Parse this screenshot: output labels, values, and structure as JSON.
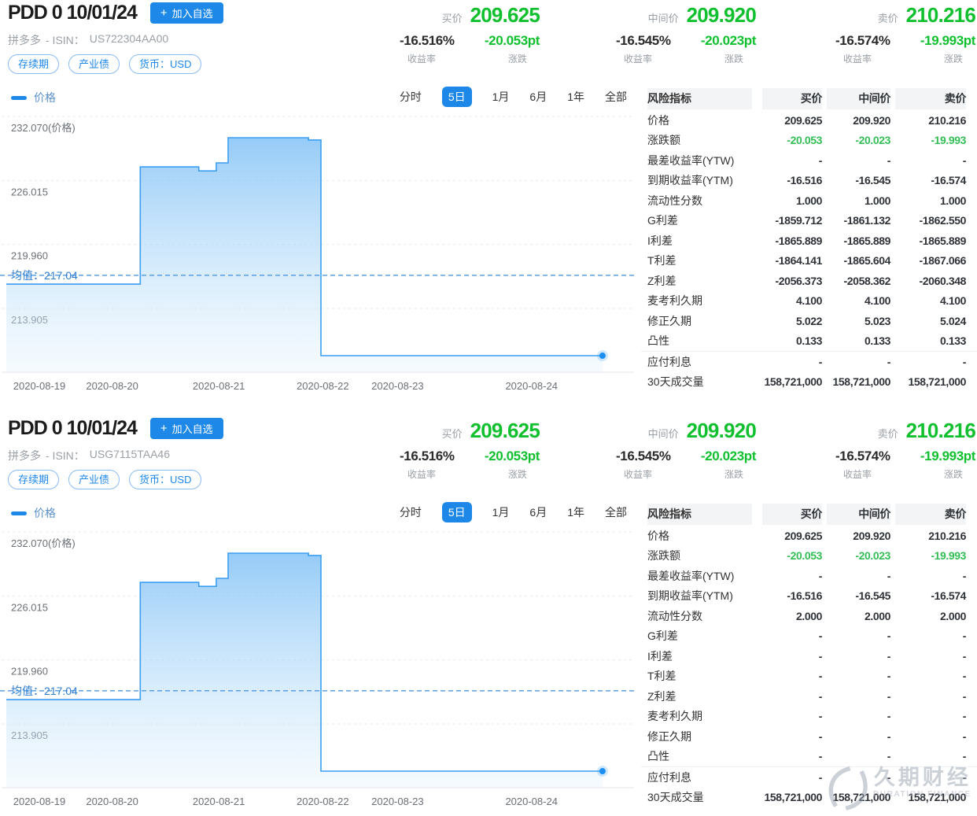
{
  "colors": {
    "accent_blue": "#1e88e9",
    "quote_green": "#10c02e",
    "table_green": "#35bd57",
    "chart_line": "#3b9ef2",
    "mean_line": "#3d8edb"
  },
  "watermark": {
    "cn": "久期财经",
    "en": "DURATION FINANCE"
  },
  "panels": [
    {
      "title": "PDD 0 10/01/24",
      "add_button_plus": "+",
      "add_button_label": "加入自选",
      "name": "拼多多",
      "isin_label": "- ISIN：",
      "isin": "US722304AA00",
      "tags": [
        "存续期",
        "产业债",
        "货币：USD"
      ],
      "quotes": [
        {
          "label": "买价",
          "price": "209.625",
          "yield": "-16.516%",
          "yield_label": "收益率",
          "change": "-20.053pt",
          "change_label": "涨跌"
        },
        {
          "label": "中间价",
          "price": "209.920",
          "yield": "-16.545%",
          "yield_label": "收益率",
          "change": "-20.023pt",
          "change_label": "涨跌"
        },
        {
          "label": "卖价",
          "price": "210.216",
          "yield": "-16.574%",
          "yield_label": "收益率",
          "change": "-19.993pt",
          "change_label": "涨跌"
        }
      ],
      "legend": "价格",
      "tabs": [
        {
          "label": "分时"
        },
        {
          "label": "5日"
        },
        {
          "label": "1月"
        },
        {
          "label": "6月"
        },
        {
          "label": "1年"
        },
        {
          "label": "全部"
        }
      ],
      "active_tab": "5日",
      "chart_data": {
        "type": "area",
        "series_name": "价格",
        "ylim": [
          207.87,
          232.07
        ],
        "y_ticks": [
          {
            "v": 232.07,
            "label": "232.070(价格)"
          },
          {
            "v": 226.015,
            "label": "226.015"
          },
          {
            "v": 219.96,
            "label": "219.960"
          },
          {
            "v": 213.905,
            "label": "213.905"
          }
        ],
        "x_ticks": [
          {
            "pos": 0.053,
            "label": "2020-08-19"
          },
          {
            "pos": 0.17,
            "label": "2020-08-20"
          },
          {
            "pos": 0.341,
            "label": "2020-08-21"
          },
          {
            "pos": 0.508,
            "label": "2020-08-22"
          },
          {
            "pos": 0.628,
            "label": "2020-08-23"
          },
          {
            "pos": 0.843,
            "label": "2020-08-24"
          }
        ],
        "mean": {
          "label": "均值：217.04",
          "value": 217.04
        },
        "points": [
          [
            0.0,
            216.2
          ],
          [
            0.215,
            216.2
          ],
          [
            0.215,
            227.3
          ],
          [
            0.309,
            227.3
          ],
          [
            0.309,
            226.92
          ],
          [
            0.337,
            226.92
          ],
          [
            0.337,
            227.68
          ],
          [
            0.356,
            227.68
          ],
          [
            0.356,
            230.06
          ],
          [
            0.485,
            230.06
          ],
          [
            0.485,
            229.84
          ],
          [
            0.505,
            229.84
          ],
          [
            0.505,
            209.43
          ],
          [
            0.957,
            209.43
          ]
        ]
      },
      "table": {
        "title": "风险指标",
        "columns": [
          "买价",
          "中间价",
          "卖价"
        ],
        "rows": [
          {
            "label": "价格",
            "values": [
              "209.625",
              "209.920",
              "210.216"
            ]
          },
          {
            "label": "涨跌额",
            "values": [
              "-20.053",
              "-20.023",
              "-19.993"
            ],
            "green": true
          },
          {
            "label": "最差收益率(YTW)",
            "values": [
              "-",
              "-",
              "-"
            ]
          },
          {
            "label": "到期收益率(YTM)",
            "values": [
              "-16.516",
              "-16.545",
              "-16.574"
            ]
          },
          {
            "label": "流动性分数",
            "values": [
              "1.000",
              "1.000",
              "1.000"
            ]
          },
          {
            "label": "G利差",
            "values": [
              "-1859.712",
              "-1861.132",
              "-1862.550"
            ]
          },
          {
            "label": "I利差",
            "values": [
              "-1865.889",
              "-1865.889",
              "-1865.889"
            ]
          },
          {
            "label": "T利差",
            "values": [
              "-1864.141",
              "-1865.604",
              "-1867.066"
            ]
          },
          {
            "label": "Z利差",
            "values": [
              "-2056.373",
              "-2058.362",
              "-2060.348"
            ]
          },
          {
            "label": "麦考利久期",
            "values": [
              "4.100",
              "4.100",
              "4.100"
            ]
          },
          {
            "label": "修正久期",
            "values": [
              "5.022",
              "5.023",
              "5.024"
            ]
          },
          {
            "label": "凸性",
            "values": [
              "0.133",
              "0.133",
              "0.133"
            ]
          },
          {
            "label": "应付利息",
            "values": [
              "-",
              "-",
              "-"
            ],
            "separator_before": true
          },
          {
            "label": "30天成交量",
            "values": [
              "158,721,000",
              "158,721,000",
              "158,721,000"
            ]
          }
        ]
      }
    },
    {
      "title": "PDD 0 10/01/24",
      "add_button_plus": "+",
      "add_button_label": "加入自选",
      "name": "拼多多",
      "isin_label": "- ISIN：",
      "isin": "USG7115TAA46",
      "tags": [
        "存续期",
        "产业债",
        "货币：USD"
      ],
      "quotes": [
        {
          "label": "买价",
          "price": "209.625",
          "yield": "-16.516%",
          "yield_label": "收益率",
          "change": "-20.053pt",
          "change_label": "涨跌"
        },
        {
          "label": "中间价",
          "price": "209.920",
          "yield": "-16.545%",
          "yield_label": "收益率",
          "change": "-20.023pt",
          "change_label": "涨跌"
        },
        {
          "label": "卖价",
          "price": "210.216",
          "yield": "-16.574%",
          "yield_label": "收益率",
          "change": "-19.993pt",
          "change_label": "涨跌"
        }
      ],
      "legend": "价格",
      "tabs": [
        {
          "label": "分时"
        },
        {
          "label": "5日"
        },
        {
          "label": "1月"
        },
        {
          "label": "6月"
        },
        {
          "label": "1年"
        },
        {
          "label": "全部"
        }
      ],
      "active_tab": "5日",
      "chart_data": {
        "type": "area",
        "series_name": "价格",
        "ylim": [
          207.87,
          232.07
        ],
        "y_ticks": [
          {
            "v": 232.07,
            "label": "232.070(价格)"
          },
          {
            "v": 226.015,
            "label": "226.015"
          },
          {
            "v": 219.96,
            "label": "219.960"
          },
          {
            "v": 213.905,
            "label": "213.905"
          }
        ],
        "x_ticks": [
          {
            "pos": 0.053,
            "label": "2020-08-19"
          },
          {
            "pos": 0.17,
            "label": "2020-08-20"
          },
          {
            "pos": 0.341,
            "label": "2020-08-21"
          },
          {
            "pos": 0.508,
            "label": "2020-08-22"
          },
          {
            "pos": 0.628,
            "label": "2020-08-23"
          },
          {
            "pos": 0.843,
            "label": "2020-08-24"
          }
        ],
        "mean": {
          "label": "均值：217.04",
          "value": 217.04
        },
        "points": [
          [
            0.0,
            216.2
          ],
          [
            0.215,
            216.2
          ],
          [
            0.215,
            227.3
          ],
          [
            0.309,
            227.3
          ],
          [
            0.309,
            226.92
          ],
          [
            0.337,
            226.92
          ],
          [
            0.337,
            227.68
          ],
          [
            0.356,
            227.68
          ],
          [
            0.356,
            230.06
          ],
          [
            0.485,
            230.06
          ],
          [
            0.485,
            229.84
          ],
          [
            0.505,
            229.84
          ],
          [
            0.505,
            209.43
          ],
          [
            0.957,
            209.43
          ]
        ]
      },
      "table": {
        "title": "风险指标",
        "columns": [
          "买价",
          "中间价",
          "卖价"
        ],
        "rows": [
          {
            "label": "价格",
            "values": [
              "209.625",
              "209.920",
              "210.216"
            ]
          },
          {
            "label": "涨跌额",
            "values": [
              "-20.053",
              "-20.023",
              "-19.993"
            ],
            "green": true
          },
          {
            "label": "最差收益率(YTW)",
            "values": [
              "-",
              "-",
              "-"
            ]
          },
          {
            "label": "到期收益率(YTM)",
            "values": [
              "-16.516",
              "-16.545",
              "-16.574"
            ]
          },
          {
            "label": "流动性分数",
            "values": [
              "2.000",
              "2.000",
              "2.000"
            ]
          },
          {
            "label": "G利差",
            "values": [
              "-",
              "-",
              "-"
            ]
          },
          {
            "label": "I利差",
            "values": [
              "-",
              "-",
              "-"
            ]
          },
          {
            "label": "T利差",
            "values": [
              "-",
              "-",
              "-"
            ]
          },
          {
            "label": "Z利差",
            "values": [
              "-",
              "-",
              "-"
            ]
          },
          {
            "label": "麦考利久期",
            "values": [
              "-",
              "-",
              "-"
            ]
          },
          {
            "label": "修正久期",
            "values": [
              "-",
              "-",
              "-"
            ]
          },
          {
            "label": "凸性",
            "values": [
              "-",
              "-",
              "-"
            ]
          },
          {
            "label": "应付利息",
            "values": [
              "-",
              "-",
              "-"
            ],
            "separator_before": true
          },
          {
            "label": "30天成交量",
            "values": [
              "158,721,000",
              "158,721,000",
              "158,721,000"
            ]
          }
        ]
      }
    }
  ]
}
